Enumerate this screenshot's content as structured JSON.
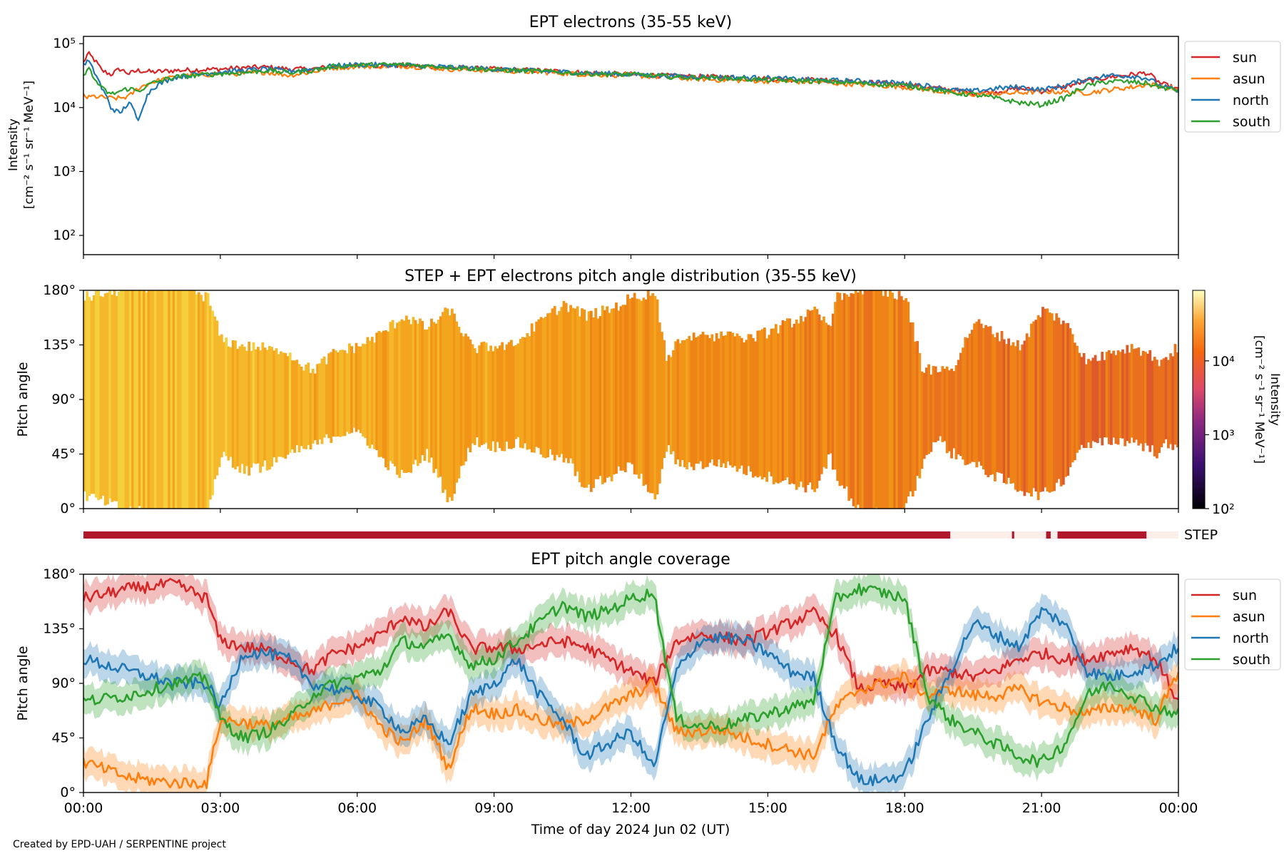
{
  "figure": {
    "credit": "Created by EPD-UAH / SERPENTINE project"
  },
  "colors": {
    "sun": "#d62728",
    "asun": "#ff7f0e",
    "north": "#1f77b4",
    "south": "#2ca02c",
    "step_bar": "#b2182b",
    "step_bar_off": "#fcefea"
  },
  "chart_data": [
    {
      "type": "line",
      "title": "EPT electrons (35-55 keV)",
      "ylabel_line1": "Intensity",
      "ylabel_line2": "[cm⁻² s⁻¹ sr⁻¹ MeV⁻¹]",
      "yscale": "log",
      "ylim": [
        50,
        130000
      ],
      "yticks": [
        {
          "value": 100,
          "label": "10²"
        },
        {
          "value": 1000,
          "label": "10³"
        },
        {
          "value": 10000,
          "label": "10⁴"
        },
        {
          "value": 100000,
          "label": "10⁵"
        }
      ],
      "x_hours": [
        0,
        0.1,
        0.2,
        0.4,
        0.6,
        0.8,
        1.0,
        1.2,
        1.5,
        2.0,
        2.5,
        3.0,
        3.5,
        4.0,
        4.5,
        5.0,
        5.5,
        6.0,
        7.0,
        8.0,
        9.0,
        10.0,
        11.0,
        12.0,
        13.0,
        14.0,
        15.0,
        16.0,
        17.0,
        18.0,
        18.5,
        19.0,
        19.5,
        20.0,
        20.5,
        21.0,
        21.5,
        22.0,
        22.5,
        23.0,
        23.3,
        23.6,
        24.0
      ],
      "series": [
        {
          "name": "sun",
          "color_key": "sun",
          "values": [
            50000,
            70000,
            60000,
            38000,
            33000,
            40000,
            34000,
            38000,
            36000,
            38000,
            39000,
            40000,
            42000,
            43000,
            40000,
            40000,
            44000,
            45000,
            46000,
            42000,
            40000,
            38000,
            35000,
            33000,
            31000,
            30000,
            28000,
            27000,
            25000,
            23000,
            21000,
            19000,
            17000,
            17500,
            20000,
            18000,
            21000,
            26000,
            30000,
            33000,
            35000,
            24000,
            19000
          ]
        },
        {
          "name": "asun",
          "color_key": "asun",
          "values": [
            16000,
            14000,
            15000,
            14500,
            14000,
            14000,
            15000,
            20000,
            25000,
            30000,
            32000,
            34000,
            34000,
            36000,
            32000,
            36000,
            42000,
            44000,
            45000,
            40000,
            38000,
            36000,
            33000,
            32000,
            29000,
            27000,
            26000,
            25000,
            23000,
            21000,
            19000,
            17000,
            16000,
            16500,
            17000,
            18000,
            17500,
            17000,
            19000,
            21000,
            23000,
            22000,
            19000
          ]
        },
        {
          "name": "north",
          "color_key": "north",
          "values": [
            45000,
            55000,
            40000,
            20000,
            10000,
            8000,
            12000,
            6000,
            20000,
            30000,
            33000,
            36000,
            38000,
            40000,
            37000,
            40000,
            45000,
            47000,
            46000,
            43000,
            40000,
            37000,
            35000,
            33000,
            31000,
            30000,
            29000,
            27000,
            26000,
            24000,
            22000,
            19000,
            18000,
            20000,
            21000,
            19000,
            22000,
            28000,
            32000,
            31000,
            29000,
            22000,
            18000
          ]
        },
        {
          "name": "south",
          "color_key": "south",
          "values": [
            30000,
            45000,
            30000,
            20000,
            16000,
            18000,
            20000,
            18000,
            24000,
            30000,
            32000,
            34000,
            35000,
            38000,
            35000,
            38000,
            44000,
            46000,
            47000,
            43000,
            39000,
            37000,
            34000,
            33000,
            30000,
            29000,
            27000,
            26000,
            24000,
            22000,
            20000,
            17000,
            16000,
            14000,
            12000,
            11000,
            14000,
            22000,
            26000,
            25000,
            24000,
            21000,
            18000
          ]
        }
      ],
      "legend": [
        "sun",
        "asun",
        "north",
        "south"
      ],
      "legend_position": "outside-right-top"
    },
    {
      "type": "heatmap",
      "title": "STEP + EPT electrons pitch angle distribution (35-55 keV)",
      "ylabel": "Pitch angle",
      "ylim": [
        0,
        180
      ],
      "yticks": [
        "0°",
        "45°",
        "90°",
        "135°",
        "180°"
      ],
      "colorbar": {
        "label_line1": "Intensity",
        "label_line2": "[cm⁻² s⁻¹ sr⁻¹ MeV⁻¹]",
        "scale": "log",
        "range": [
          100,
          90000
        ],
        "ticks": [
          {
            "value": 100,
            "label": "10²"
          },
          {
            "value": 1000,
            "label": "10³"
          },
          {
            "value": 10000,
            "label": "10⁴"
          }
        ]
      },
      "step_indicator": {
        "label": "STEP",
        "active_intervals_hours": [
          [
            0,
            19.0
          ],
          [
            20.35,
            20.4
          ],
          [
            21.1,
            21.2
          ],
          [
            21.35,
            23.3
          ]
        ]
      }
    },
    {
      "type": "line",
      "title": "EPT pitch angle coverage",
      "xlabel": "Time of day 2024 Jun 02 (UT)",
      "ylabel": "Pitch angle",
      "ylim": [
        0,
        180
      ],
      "yticks": [
        "0°",
        "45°",
        "90°",
        "135°",
        "180°"
      ],
      "xlim_hours": [
        0,
        24
      ],
      "xticks": [
        "00:00",
        "03:00",
        "06:00",
        "09:00",
        "12:00",
        "15:00",
        "18:00",
        "21:00",
        "00:00"
      ],
      "x_hours": [
        0,
        1,
        2,
        2.7,
        3,
        3.5,
        4,
        4.5,
        5,
        5.5,
        6,
        6.5,
        7,
        7.5,
        8,
        8.5,
        9,
        9.5,
        10,
        10.5,
        11,
        11.5,
        12,
        12.5,
        13,
        13.5,
        14,
        14.5,
        15,
        15.5,
        16,
        16.5,
        17,
        17.5,
        18,
        18.5,
        19,
        19.5,
        20,
        20.5,
        21,
        21.5,
        22,
        22.5,
        23,
        23.5,
        24
      ],
      "band_halfwidth_deg": 12,
      "series": [
        {
          "name": "sun",
          "color_key": "sun",
          "values": [
            160,
            168,
            172,
            160,
            125,
            120,
            118,
            110,
            100,
            115,
            120,
            130,
            145,
            135,
            150,
            118,
            120,
            118,
            122,
            125,
            120,
            110,
            100,
            90,
            125,
            130,
            128,
            125,
            132,
            140,
            148,
            130,
            85,
            90,
            85,
            100,
            100,
            95,
            100,
            110,
            115,
            110,
            110,
            115,
            120,
            110,
            75
          ]
        },
        {
          "name": "asun",
          "color_key": "asun",
          "values": [
            25,
            12,
            8,
            8,
            60,
            58,
            55,
            60,
            65,
            75,
            80,
            55,
            40,
            60,
            20,
            70,
            65,
            68,
            60,
            55,
            60,
            70,
            80,
            90,
            50,
            50,
            52,
            45,
            40,
            35,
            30,
            70,
            85,
            90,
            95,
            80,
            85,
            80,
            80,
            85,
            75,
            70,
            65,
            70,
            70,
            60,
            100
          ]
        },
        {
          "name": "north",
          "color_key": "north",
          "values": [
            110,
            100,
            90,
            90,
            70,
            115,
            115,
            110,
            90,
            85,
            80,
            70,
            50,
            60,
            40,
            80,
            90,
            110,
            80,
            60,
            30,
            40,
            50,
            20,
            100,
            125,
            128,
            125,
            115,
            100,
            95,
            40,
            10,
            10,
            15,
            60,
            100,
            140,
            130,
            120,
            150,
            140,
            100,
            95,
            100,
            105,
            120
          ]
        },
        {
          "name": "south",
          "color_key": "south",
          "values": [
            75,
            80,
            90,
            95,
            60,
            45,
            50,
            60,
            80,
            90,
            95,
            100,
            125,
            120,
            130,
            105,
            110,
            125,
            140,
            155,
            145,
            150,
            160,
            165,
            60,
            55,
            55,
            60,
            65,
            70,
            75,
            160,
            168,
            165,
            160,
            80,
            60,
            50,
            40,
            30,
            25,
            40,
            80,
            90,
            80,
            70,
            65
          ]
        }
      ],
      "legend": [
        "sun",
        "asun",
        "north",
        "south"
      ],
      "legend_position": "outside-right-top"
    }
  ]
}
